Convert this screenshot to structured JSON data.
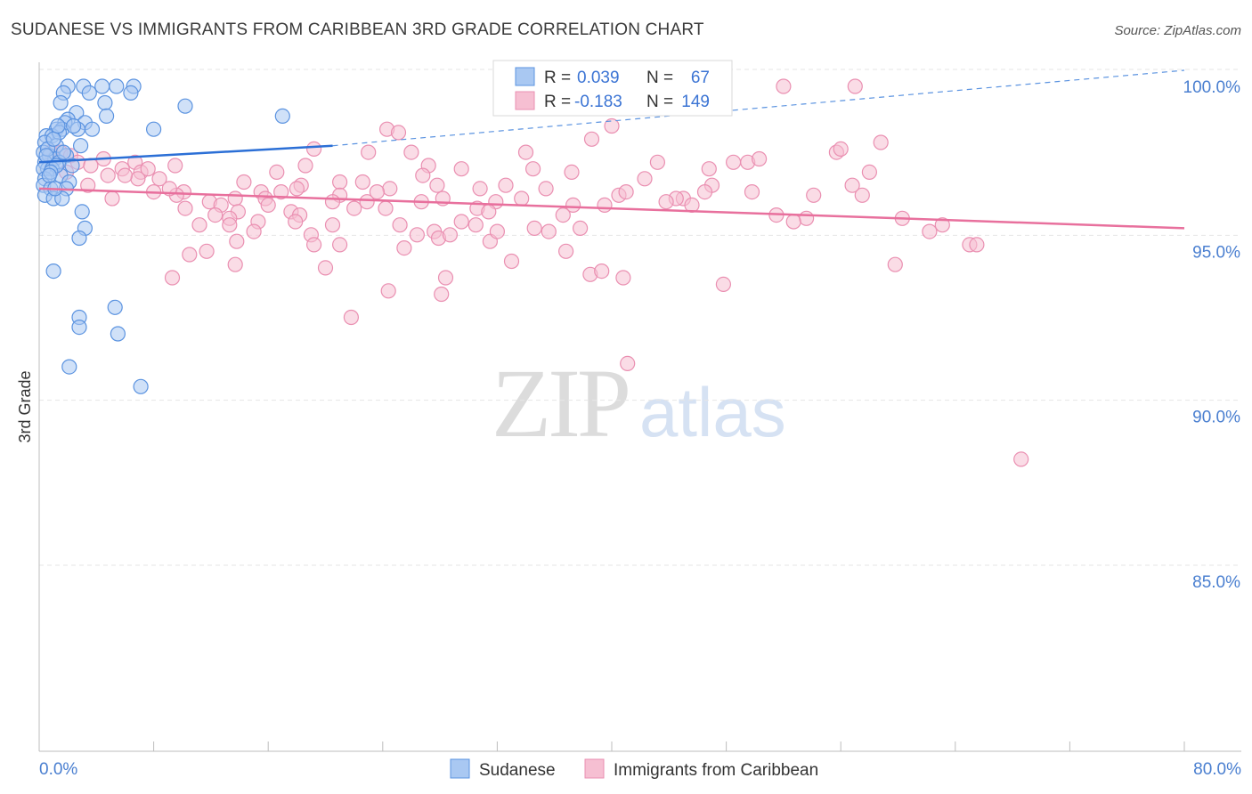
{
  "colors": {
    "blue_fill": "#a9c8f2",
    "blue_stroke": "#5b93e0",
    "blue_line": "#2b6fd6",
    "pink_fill": "#f6bfd2",
    "pink_stroke": "#ea8fb1",
    "pink_line": "#e8709d",
    "grid": "#e6e6e6",
    "tick_text": "#4a7fd0"
  },
  "chart_data": {
    "type": "scatter",
    "title": "SUDANESE VS IMMIGRANTS FROM CARIBBEAN 3RD GRADE CORRELATION CHART",
    "source": "Source: ZipAtlas.com",
    "ylabel": "3rd Grade",
    "xlim": [
      0,
      80
    ],
    "ylim": [
      80.0,
      100.8
    ],
    "y_ticks": [
      {
        "value": 100.0,
        "label": "100.0%"
      },
      {
        "value": 95.0,
        "label": "95.0%"
      },
      {
        "value": 90.0,
        "label": "90.0%"
      },
      {
        "value": 85.0,
        "label": "85.0%"
      }
    ],
    "x_tick_labels": [
      {
        "value": 0,
        "label": "0.0%"
      },
      {
        "value": 80,
        "label": "80.0%"
      }
    ],
    "x_minor_ticks": [
      0,
      8,
      16,
      24,
      32,
      40,
      48,
      56,
      64,
      72,
      80
    ],
    "watermark": {
      "zip": "ZIP",
      "atlas": "atlas"
    },
    "legend": [
      {
        "name": "Sudanese",
        "color": "blue"
      },
      {
        "name": "Immigrants from Caribbean",
        "color": "pink"
      }
    ],
    "stats": [
      {
        "r_label": "R = ",
        "r": "0.039",
        "n_label": "N = ",
        "n": "67",
        "color": "blue"
      },
      {
        "r_label": "R = ",
        "r": "-0.183",
        "n_label": "N = ",
        "n": "149",
        "color": "pink"
      }
    ],
    "series": [
      {
        "name": "Sudanese",
        "color": "blue",
        "trend": {
          "x1": 0,
          "y1": 97.7,
          "x2": 20.5,
          "y2": 98.2,
          "dash_x2": 80,
          "dash_y2": 100.0
        },
        "points": [
          [
            2.0,
            100.0
          ],
          [
            3.1,
            100.0
          ],
          [
            4.4,
            100.0
          ],
          [
            5.4,
            100.0
          ],
          [
            6.6,
            100.0
          ],
          [
            1.7,
            99.8
          ],
          [
            3.5,
            99.8
          ],
          [
            6.4,
            99.8
          ],
          [
            1.5,
            99.5
          ],
          [
            4.6,
            99.5
          ],
          [
            10.2,
            99.4
          ],
          [
            2.6,
            99.2
          ],
          [
            4.7,
            99.1
          ],
          [
            17.0,
            99.1
          ],
          [
            2.0,
            99.0
          ],
          [
            1.8,
            98.9
          ],
          [
            3.2,
            98.9
          ],
          [
            1.2,
            98.7
          ],
          [
            1.6,
            98.7
          ],
          [
            2.7,
            98.7
          ],
          [
            3.7,
            98.7
          ],
          [
            8.0,
            98.7
          ],
          [
            0.5,
            98.5
          ],
          [
            0.9,
            98.5
          ],
          [
            1.4,
            98.6
          ],
          [
            0.4,
            98.3
          ],
          [
            1.2,
            98.2
          ],
          [
            0.3,
            98.0
          ],
          [
            0.7,
            97.9
          ],
          [
            1.1,
            97.8
          ],
          [
            1.9,
            97.9
          ],
          [
            0.4,
            97.7
          ],
          [
            1.4,
            97.7
          ],
          [
            0.6,
            97.5
          ],
          [
            0.3,
            97.5
          ],
          [
            0.9,
            97.5
          ],
          [
            1.5,
            97.3
          ],
          [
            0.4,
            97.2
          ],
          [
            2.1,
            97.1
          ],
          [
            0.3,
            97.0
          ],
          [
            0.8,
            96.9
          ],
          [
            1.9,
            96.9
          ],
          [
            0.4,
            96.7
          ],
          [
            1.0,
            96.6
          ],
          [
            1.6,
            96.6
          ],
          [
            3.0,
            96.2
          ],
          [
            3.2,
            95.7
          ],
          [
            2.8,
            95.4
          ],
          [
            1.0,
            94.4
          ],
          [
            5.3,
            93.3
          ],
          [
            2.8,
            93.0
          ],
          [
            2.8,
            92.7
          ],
          [
            5.5,
            92.5
          ],
          [
            2.1,
            91.5
          ],
          [
            7.1,
            90.9
          ],
          [
            1.2,
            97.6
          ],
          [
            0.6,
            98.1
          ],
          [
            2.3,
            97.6
          ],
          [
            1.0,
            98.4
          ],
          [
            0.8,
            97.4
          ],
          [
            1.7,
            98.0
          ],
          [
            2.4,
            98.8
          ],
          [
            0.5,
            97.9
          ],
          [
            1.3,
            98.8
          ],
          [
            0.7,
            97.3
          ],
          [
            2.9,
            98.2
          ],
          [
            1.1,
            96.9
          ]
        ]
      },
      {
        "name": "Immigrants from Caribbean",
        "color": "pink",
        "trend": {
          "x1": 0,
          "y1": 96.9,
          "x2": 80,
          "y2": 95.7
        },
        "points": [
          [
            52.0,
            100.0
          ],
          [
            57.0,
            100.0
          ],
          [
            24.3,
            98.7
          ],
          [
            25.1,
            98.6
          ],
          [
            40.0,
            98.8
          ],
          [
            38.6,
            98.4
          ],
          [
            58.8,
            98.3
          ],
          [
            19.2,
            98.1
          ],
          [
            55.7,
            98.0
          ],
          [
            56.0,
            98.1
          ],
          [
            23.0,
            98.0
          ],
          [
            26.0,
            98.0
          ],
          [
            34.0,
            98.0
          ],
          [
            43.2,
            97.7
          ],
          [
            48.5,
            97.7
          ],
          [
            49.5,
            97.7
          ],
          [
            50.3,
            97.8
          ],
          [
            1.5,
            98.0
          ],
          [
            2.2,
            97.9
          ],
          [
            4.5,
            97.8
          ],
          [
            6.7,
            97.7
          ],
          [
            9.5,
            97.6
          ],
          [
            18.6,
            97.6
          ],
          [
            27.2,
            97.6
          ],
          [
            29.5,
            97.5
          ],
          [
            34.5,
            97.5
          ],
          [
            37.2,
            97.4
          ],
          [
            46.8,
            97.5
          ],
          [
            5.8,
            97.5
          ],
          [
            7.1,
            97.4
          ],
          [
            16.6,
            97.4
          ],
          [
            26.8,
            97.3
          ],
          [
            42.3,
            97.2
          ],
          [
            8.4,
            97.2
          ],
          [
            6.9,
            97.2
          ],
          [
            14.3,
            97.1
          ],
          [
            21.0,
            97.1
          ],
          [
            22.6,
            97.1
          ],
          [
            18.3,
            97.0
          ],
          [
            27.8,
            97.0
          ],
          [
            32.6,
            97.0
          ],
          [
            47.0,
            97.0
          ],
          [
            56.8,
            97.0
          ],
          [
            8.0,
            96.8
          ],
          [
            10.1,
            96.8
          ],
          [
            15.5,
            96.8
          ],
          [
            18.0,
            96.9
          ],
          [
            24.5,
            96.9
          ],
          [
            30.8,
            96.9
          ],
          [
            35.4,
            96.9
          ],
          [
            46.5,
            96.8
          ],
          [
            49.8,
            96.8
          ],
          [
            9.6,
            96.7
          ],
          [
            13.7,
            96.6
          ],
          [
            15.8,
            96.6
          ],
          [
            21.0,
            96.7
          ],
          [
            28.2,
            96.6
          ],
          [
            33.7,
            96.6
          ],
          [
            40.5,
            96.7
          ],
          [
            45.0,
            96.6
          ],
          [
            11.9,
            96.5
          ],
          [
            12.7,
            96.4
          ],
          [
            16.0,
            96.4
          ],
          [
            20.5,
            96.5
          ],
          [
            22.9,
            96.5
          ],
          [
            26.7,
            96.5
          ],
          [
            31.9,
            96.5
          ],
          [
            39.5,
            96.4
          ],
          [
            44.5,
            96.6
          ],
          [
            10.2,
            96.3
          ],
          [
            13.9,
            96.2
          ],
          [
            17.6,
            96.2
          ],
          [
            22.0,
            96.3
          ],
          [
            24.2,
            96.3
          ],
          [
            30.6,
            96.3
          ],
          [
            37.3,
            96.4
          ],
          [
            13.3,
            96.0
          ],
          [
            18.2,
            96.1
          ],
          [
            29.5,
            95.9
          ],
          [
            31.4,
            96.2
          ],
          [
            36.6,
            96.1
          ],
          [
            51.5,
            96.1
          ],
          [
            53.6,
            96.0
          ],
          [
            11.2,
            95.8
          ],
          [
            13.3,
            95.8
          ],
          [
            15.3,
            95.9
          ],
          [
            17.9,
            95.9
          ],
          [
            20.5,
            95.8
          ],
          [
            27.6,
            95.6
          ],
          [
            30.5,
            95.8
          ],
          [
            34.6,
            95.7
          ],
          [
            35.6,
            95.6
          ],
          [
            15.0,
            95.6
          ],
          [
            19.0,
            95.5
          ],
          [
            26.4,
            95.5
          ],
          [
            27.9,
            95.4
          ],
          [
            28.7,
            95.5
          ],
          [
            31.5,
            95.3
          ],
          [
            13.8,
            95.3
          ],
          [
            19.2,
            95.2
          ],
          [
            21.0,
            95.2
          ],
          [
            25.5,
            95.1
          ],
          [
            36.8,
            95.0
          ],
          [
            11.7,
            95.0
          ],
          [
            10.5,
            94.9
          ],
          [
            33.0,
            94.7
          ],
          [
            47.8,
            94.0
          ],
          [
            65.0,
            95.2
          ],
          [
            65.5,
            95.2
          ],
          [
            20.0,
            94.5
          ],
          [
            13.7,
            94.6
          ],
          [
            9.3,
            94.2
          ],
          [
            28.4,
            94.2
          ],
          [
            38.5,
            94.3
          ],
          [
            40.8,
            94.2
          ],
          [
            39.3,
            94.4
          ],
          [
            59.8,
            94.6
          ],
          [
            24.4,
            93.8
          ],
          [
            28.1,
            93.7
          ],
          [
            21.8,
            93.0
          ],
          [
            41.1,
            91.6
          ],
          [
            68.6,
            88.7
          ],
          [
            2.7,
            97.7
          ],
          [
            3.6,
            97.6
          ],
          [
            4.8,
            97.3
          ],
          [
            5.1,
            96.6
          ],
          [
            1.0,
            97.8
          ],
          [
            1.9,
            97.4
          ],
          [
            3.4,
            97.0
          ],
          [
            0.8,
            98.0
          ],
          [
            6.0,
            97.3
          ],
          [
            7.6,
            97.5
          ],
          [
            9.1,
            96.9
          ],
          [
            12.3,
            96.1
          ],
          [
            16.9,
            96.8
          ],
          [
            23.6,
            96.8
          ],
          [
            25.2,
            95.8
          ],
          [
            32.0,
            95.6
          ],
          [
            37.8,
            95.7
          ],
          [
            41.0,
            96.8
          ],
          [
            43.8,
            96.5
          ],
          [
            52.7,
            95.9
          ],
          [
            57.5,
            96.7
          ],
          [
            60.3,
            96.0
          ],
          [
            62.2,
            95.6
          ],
          [
            45.6,
            96.4
          ],
          [
            54.1,
            96.7
          ],
          [
            58.0,
            97.4
          ],
          [
            63.1,
            95.8
          ]
        ]
      }
    ]
  }
}
